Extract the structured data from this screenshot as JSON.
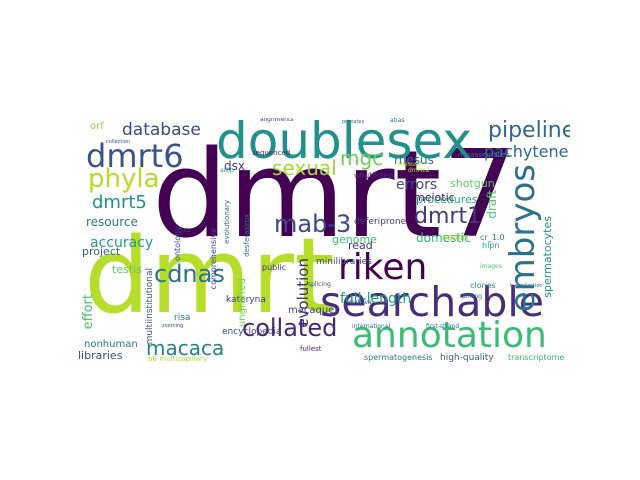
{
  "words": [
    {
      "text": "dmrt7",
      "color": "#440154"
    },
    {
      "text": "dmrt",
      "color": "#b5de2b"
    },
    {
      "text": "doublesex",
      "color": "#21918c"
    },
    {
      "text": "searchable",
      "color": "#472d7b"
    },
    {
      "text": "annotation",
      "color": "#3bbb75"
    },
    {
      "text": "riken",
      "color": "#440154"
    },
    {
      "text": "embryos",
      "color": "#2c728e"
    },
    {
      "text": "dmrt6",
      "color": "#3b528b"
    },
    {
      "text": "pipeline",
      "color": "#31688e"
    },
    {
      "text": "phyla",
      "color": "#b5de2b"
    },
    {
      "text": "mab-3",
      "color": "#3e4989"
    },
    {
      "text": "cdnas",
      "color": "#2c728e"
    },
    {
      "text": "collated",
      "color": "#482475"
    },
    {
      "text": "macaca",
      "color": "#26828e"
    },
    {
      "text": "dmrt5",
      "color": "#21918c"
    },
    {
      "text": "dmrt1",
      "color": "#443983"
    },
    {
      "text": "sexual",
      "color": "#a0da39"
    },
    {
      "text": "database",
      "color": "#3e4989"
    },
    {
      "text": "mgc",
      "color": "#6ece58"
    },
    {
      "text": "pachytene",
      "color": "#31688e"
    },
    {
      "text": "full-length",
      "color": "#1fa187"
    },
    {
      "text": "evolution",
      "color": "#472d7b"
    },
    {
      "text": "accuracy",
      "color": "#1f9e89"
    },
    {
      "text": "effort",
      "color": "#4ac16d"
    },
    {
      "text": "errors",
      "color": "#3e4989"
    },
    {
      "text": "resource",
      "color": "#2a788e"
    },
    {
      "text": "draft",
      "color": "#52c569"
    },
    {
      "text": "spermatocytes",
      "color": "#21918c"
    },
    {
      "text": "shotgun",
      "color": "#5ec962"
    },
    {
      "text": "rhesus",
      "color": "#2c728e"
    },
    {
      "text": "meiotic",
      "color": "#440154"
    },
    {
      "text": "domestic",
      "color": "#35b779"
    },
    {
      "text": "procedures",
      "color": "#22a884"
    },
    {
      "text": "dsx",
      "color": "#443983"
    },
    {
      "text": "testis",
      "color": "#5ec962"
    },
    {
      "text": "project",
      "color": "#31688e"
    },
    {
      "text": "genome",
      "color": "#3bbb75"
    },
    {
      "text": "read",
      "color": "#46327e"
    },
    {
      "text": "libraries",
      "color": "#3e4989"
    },
    {
      "text": "nonhuman",
      "color": "#2a788e"
    },
    {
      "text": "macaque",
      "color": "#414487"
    },
    {
      "text": "kateryna",
      "color": "#433e85"
    },
    {
      "text": "encyclopedia",
      "color": "#3e4989"
    },
    {
      "text": "ungrafted",
      "color": "#7ad151"
    },
    {
      "text": "spermatogenesis",
      "color": "#2a788e"
    },
    {
      "text": "high-quality",
      "color": "#365c8d"
    },
    {
      "text": "transcriptome",
      "color": "#35b779"
    },
    {
      "text": "multiinstitutional",
      "color": "#3b528b"
    },
    {
      "text": "minilibraries",
      "color": "#3e4989"
    },
    {
      "text": "deferiprone",
      "color": "#443983"
    },
    {
      "text": "unutilized",
      "color": "#46327e"
    },
    {
      "text": "clones",
      "color": "#228c8d"
    },
    {
      "text": "orf",
      "color": "#8fd744"
    },
    {
      "text": "cr_1.0",
      "color": "#25848e"
    },
    {
      "text": "hlpn",
      "color": "#1f968b"
    },
    {
      "text": "misassemblies",
      "color": "#2c728e"
    },
    {
      "text": "sequenced",
      "color": "#482878"
    },
    {
      "text": "comprehensive",
      "color": "#3e4989"
    },
    {
      "text": "public",
      "color": "#46327e"
    },
    {
      "text": "risa",
      "color": "#2c728e"
    },
    {
      "text": "fullest",
      "color": "#482878"
    },
    {
      "text": "soojin",
      "color": "#a0da39"
    },
    {
      "text": "ontology",
      "color": "#3e4989"
    },
    {
      "text": "international",
      "color": "#31688e"
    },
    {
      "text": "first-strand",
      "color": "#2a788e"
    },
    {
      "text": "images",
      "color": "#52c569"
    },
    {
      "text": "b6-multicapillary",
      "color": "#b5de2b"
    },
    {
      "text": "evolutionary",
      "color": "#31688e"
    },
    {
      "text": "desferasirox",
      "color": "#2c728e"
    },
    {
      "text": "dmrtc2",
      "color": "#b5de2b"
    },
    {
      "text": "rhesus2",
      "color": "#b5de2b"
    },
    {
      "text": "atlas",
      "color": "#2c728e"
    },
    {
      "text": "splicing",
      "color": "#3e4989"
    },
    {
      "text": "alignments",
      "color": "#3e4989"
    },
    {
      "text": "polling",
      "color": "#2c728e"
    },
    {
      "text": "lutz",
      "color": "#3e4989"
    },
    {
      "text": "arbp",
      "color": "#1fa187"
    },
    {
      "text": "makova",
      "color": "#3e4989"
    },
    {
      "text": "collection",
      "color": "#3e4989"
    },
    {
      "text": "primates",
      "color": "#2c728e"
    },
    {
      "text": "zooming",
      "color": "#3e4989"
    },
    {
      "text": "hybridization",
      "color": "#31688e"
    }
  ]
}
